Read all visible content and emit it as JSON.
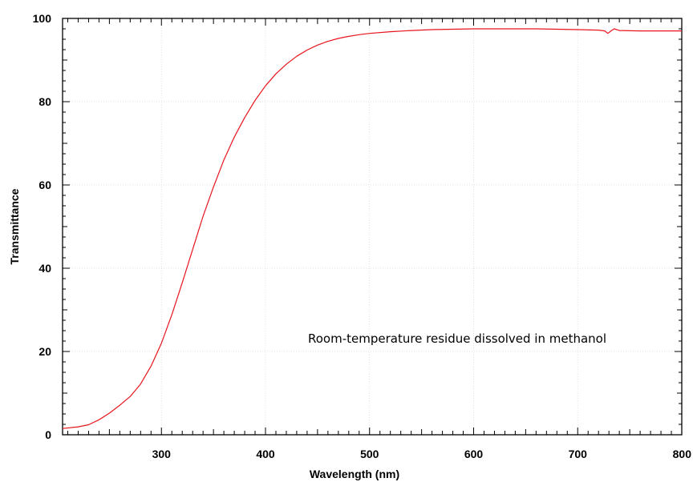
{
  "chart_data": {
    "type": "line",
    "title": "",
    "xlabel": "Wavelength (nm)",
    "ylabel": "Transmittance",
    "xlim": [
      205,
      800
    ],
    "ylim": [
      0,
      100
    ],
    "x_ticks": [
      300,
      400,
      500,
      600,
      700,
      800
    ],
    "y_ticks": [
      0,
      20,
      40,
      60,
      80,
      100
    ],
    "grid": true,
    "legend": "none",
    "annotation": "Room-temperature residue dissolved in methanol",
    "series": [
      {
        "color": "#e8141c",
        "x": [
          205,
          220,
          230,
          240,
          250,
          260,
          270,
          280,
          290,
          300,
          310,
          320,
          330,
          340,
          350,
          360,
          370,
          380,
          390,
          400,
          410,
          420,
          430,
          440,
          450,
          460,
          470,
          480,
          490,
          500,
          520,
          540,
          560,
          580,
          600,
          620,
          640,
          660,
          680,
          700,
          720,
          726,
          729,
          732,
          735,
          740,
          760,
          780,
          800
        ],
        "y": [
          1.5,
          1.9,
          2.4,
          3.6,
          5.2,
          7.1,
          9.2,
          12.2,
          16.5,
          22.0,
          28.8,
          36.5,
          44.5,
          52.5,
          59.5,
          66.0,
          71.5,
          76.2,
          80.3,
          83.8,
          86.7,
          89.0,
          90.9,
          92.4,
          93.6,
          94.5,
          95.2,
          95.7,
          96.1,
          96.4,
          96.8,
          97.1,
          97.3,
          97.4,
          97.5,
          97.5,
          97.5,
          97.5,
          97.4,
          97.3,
          97.2,
          97.0,
          96.4,
          97.0,
          97.5,
          97.1,
          97.0,
          97.0,
          97.0
        ]
      }
    ]
  }
}
